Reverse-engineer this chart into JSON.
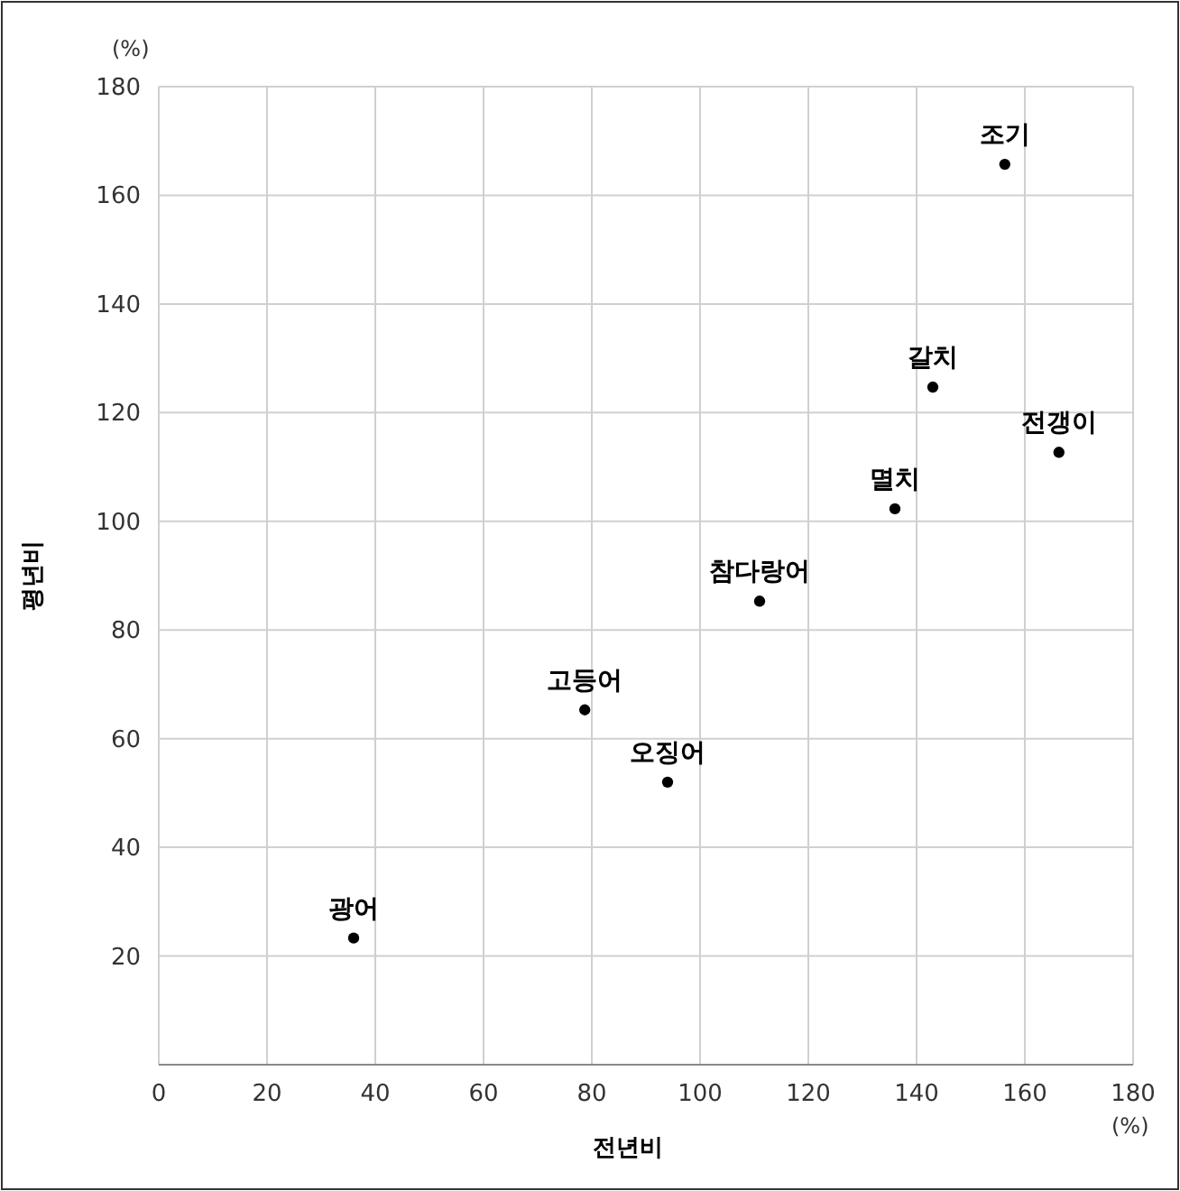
{
  "chart_data": {
    "type": "scatter",
    "xlabel": "전년비",
    "ylabel": "평년비",
    "x": [
      36,
      78.7,
      94,
      111,
      136,
      143,
      166.3,
      156.3
    ],
    "series": [
      {
        "color": "#000000",
        "values": [
          23.3,
          65.3,
          52,
          85.3,
          102.3,
          124.7,
          112.7,
          165.7
        ]
      }
    ],
    "xlim": [
      0,
      180
    ],
    "ylim": [
      0,
      180
    ],
    "xticks": [
      {
        "value": 0,
        "label": "0"
      },
      20,
      40,
      60,
      80,
      100,
      120,
      140,
      160,
      180
    ],
    "yticks": [
      {
        "value": 0,
        "label": null
      },
      20,
      40,
      60,
      80,
      100,
      120,
      140,
      160,
      180
    ],
    "grid": true,
    "marker": "circle",
    "annotations": [
      "(%)",
      "(%)",
      {
        "text": "광어",
        "x": 36,
        "y": 23.3
      },
      {
        "text": "고등어",
        "x": 78.7,
        "y": 65.3
      },
      {
        "text": "오징어",
        "x": 94,
        "y": 52
      },
      {
        "text": "참다랑어",
        "x": 111,
        "y": 85.3
      },
      {
        "text": "멸치",
        "x": 136,
        "y": 102.3
      },
      {
        "text": "갈치",
        "x": 143,
        "y": 124.7
      },
      {
        "text": "전갱이",
        "x": 166.3,
        "y": 112.7
      },
      {
        "text": "조기",
        "x": 156.3,
        "y": 165.7
      }
    ]
  }
}
